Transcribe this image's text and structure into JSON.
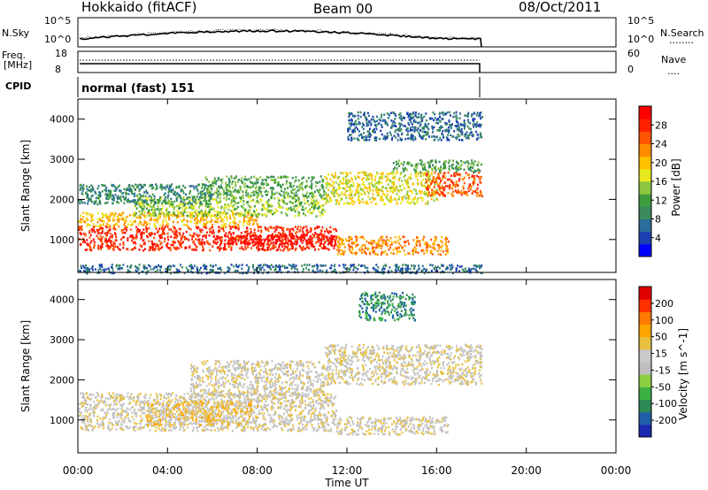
{
  "header": {
    "station": "Hokkaido (fitACF)",
    "beam": "Beam 00",
    "date": "08/Oct/2011"
  },
  "nsky_panel": {
    "left_label": "N.Sky",
    "left_ticks": [
      "10^5",
      "10^0"
    ],
    "right_ticks": [
      "10^5",
      "10^0"
    ],
    "right_label": "N.Search",
    "right_legend": "........"
  },
  "freq_panel": {
    "left_label_1": "Freq.",
    "left_label_2": "[MHz]",
    "left_ticks": [
      "18",
      "8"
    ],
    "right_ticks": [
      "60",
      "0"
    ],
    "right_label": "Nave",
    "right_legend": "...."
  },
  "cpid_panel": {
    "label": "CPID",
    "value": "normal (fast) 151"
  },
  "chart_data": [
    {
      "type": "heatmap",
      "name": "power-panel",
      "ylabel": "Slant Range [km]",
      "yticks": [
        "1000",
        "2000",
        "3000",
        "4000"
      ],
      "xlim_hours": [
        0,
        24
      ],
      "ylim_km": [
        180,
        4500
      ],
      "data_end_hour": 18,
      "colorbar": {
        "label": "Power [dB]",
        "ticks": [
          "4",
          "8",
          "12",
          "16",
          "20",
          "24",
          "28"
        ],
        "colors": [
          "#0000ff",
          "#1a3fb0",
          "#2a6e9a",
          "#3a8a5e",
          "#3d9b3d",
          "#8cc63f",
          "#e8e820",
          "#ffc000",
          "#ff8c00",
          "#ff5500",
          "#ff2000",
          "#ff0000"
        ]
      },
      "echo_bands": [
        {
          "t0": 0,
          "t1": 11.5,
          "r0": 750,
          "r1": 1350,
          "level": 10
        },
        {
          "t0": 6,
          "t1": 11.5,
          "r0": 900,
          "r1": 1150,
          "level": 11
        },
        {
          "t0": 0,
          "t1": 8,
          "r0": 1350,
          "r1": 1700,
          "level": 7
        },
        {
          "t0": 2.5,
          "t1": 11,
          "r0": 1600,
          "r1": 2100,
          "level": 5
        },
        {
          "t0": 0,
          "t1": 6,
          "r0": 1900,
          "r1": 2400,
          "level": 3
        },
        {
          "t0": 5.5,
          "t1": 11,
          "r0": 2100,
          "r1": 2600,
          "level": 4
        },
        {
          "t0": 11.5,
          "t1": 16.5,
          "r0": 650,
          "r1": 1100,
          "level": 8
        },
        {
          "t0": 11,
          "t1": 16,
          "r0": 1900,
          "r1": 2700,
          "level": 6
        },
        {
          "t0": 15.5,
          "t1": 18,
          "r0": 2100,
          "r1": 2700,
          "level": 9
        },
        {
          "t0": 14,
          "t1": 18,
          "r0": 2700,
          "r1": 3000,
          "level": 4
        },
        {
          "t0": 12,
          "t1": 18,
          "r0": 3500,
          "r1": 4200,
          "level": 2
        },
        {
          "t0": 0,
          "t1": 18,
          "r0": 180,
          "r1": 400,
          "level": 2
        }
      ]
    },
    {
      "type": "heatmap",
      "name": "velocity-panel",
      "ylabel": "Slant Range [km]",
      "yticks": [
        "1000",
        "2000",
        "3000",
        "4000"
      ],
      "xlim_hours": [
        0,
        24
      ],
      "ylim_km": [
        180,
        4500
      ],
      "data_end_hour": 18,
      "colorbar": {
        "label": "Velocity [m s^-1]",
        "ticks": [
          "200",
          "100",
          "50",
          "15",
          "-15",
          "-50",
          "-100",
          "-200"
        ],
        "colors": [
          "#1a2ab0",
          "#1f5fa8",
          "#2e8b57",
          "#3cb043",
          "#8cd040",
          "#bfbfbf",
          "#c8c8c8",
          "#e8c040",
          "#ffa500",
          "#ff7a00",
          "#ff3000",
          "#e00000"
        ]
      },
      "echo_bands": [
        {
          "t0": 0,
          "t1": 11.5,
          "r0": 750,
          "r1": 1700,
          "level": 6
        },
        {
          "t0": 5,
          "t1": 11,
          "r0": 1600,
          "r1": 2500,
          "level": 6
        },
        {
          "t0": 11.5,
          "t1": 16.5,
          "r0": 650,
          "r1": 1100,
          "level": 6
        },
        {
          "t0": 11,
          "t1": 18,
          "r0": 1900,
          "r1": 2900,
          "level": 6
        },
        {
          "t0": 3,
          "t1": 8,
          "r0": 900,
          "r1": 1500,
          "level": 7
        },
        {
          "t0": 12.5,
          "t1": 15,
          "r0": 3500,
          "r1": 4200,
          "level": 2
        }
      ]
    }
  ],
  "x_axis": {
    "ticks": [
      "00:00",
      "04:00",
      "08:00",
      "12:00",
      "16:00",
      "20:00",
      "00:00"
    ],
    "label": "Time UT"
  }
}
